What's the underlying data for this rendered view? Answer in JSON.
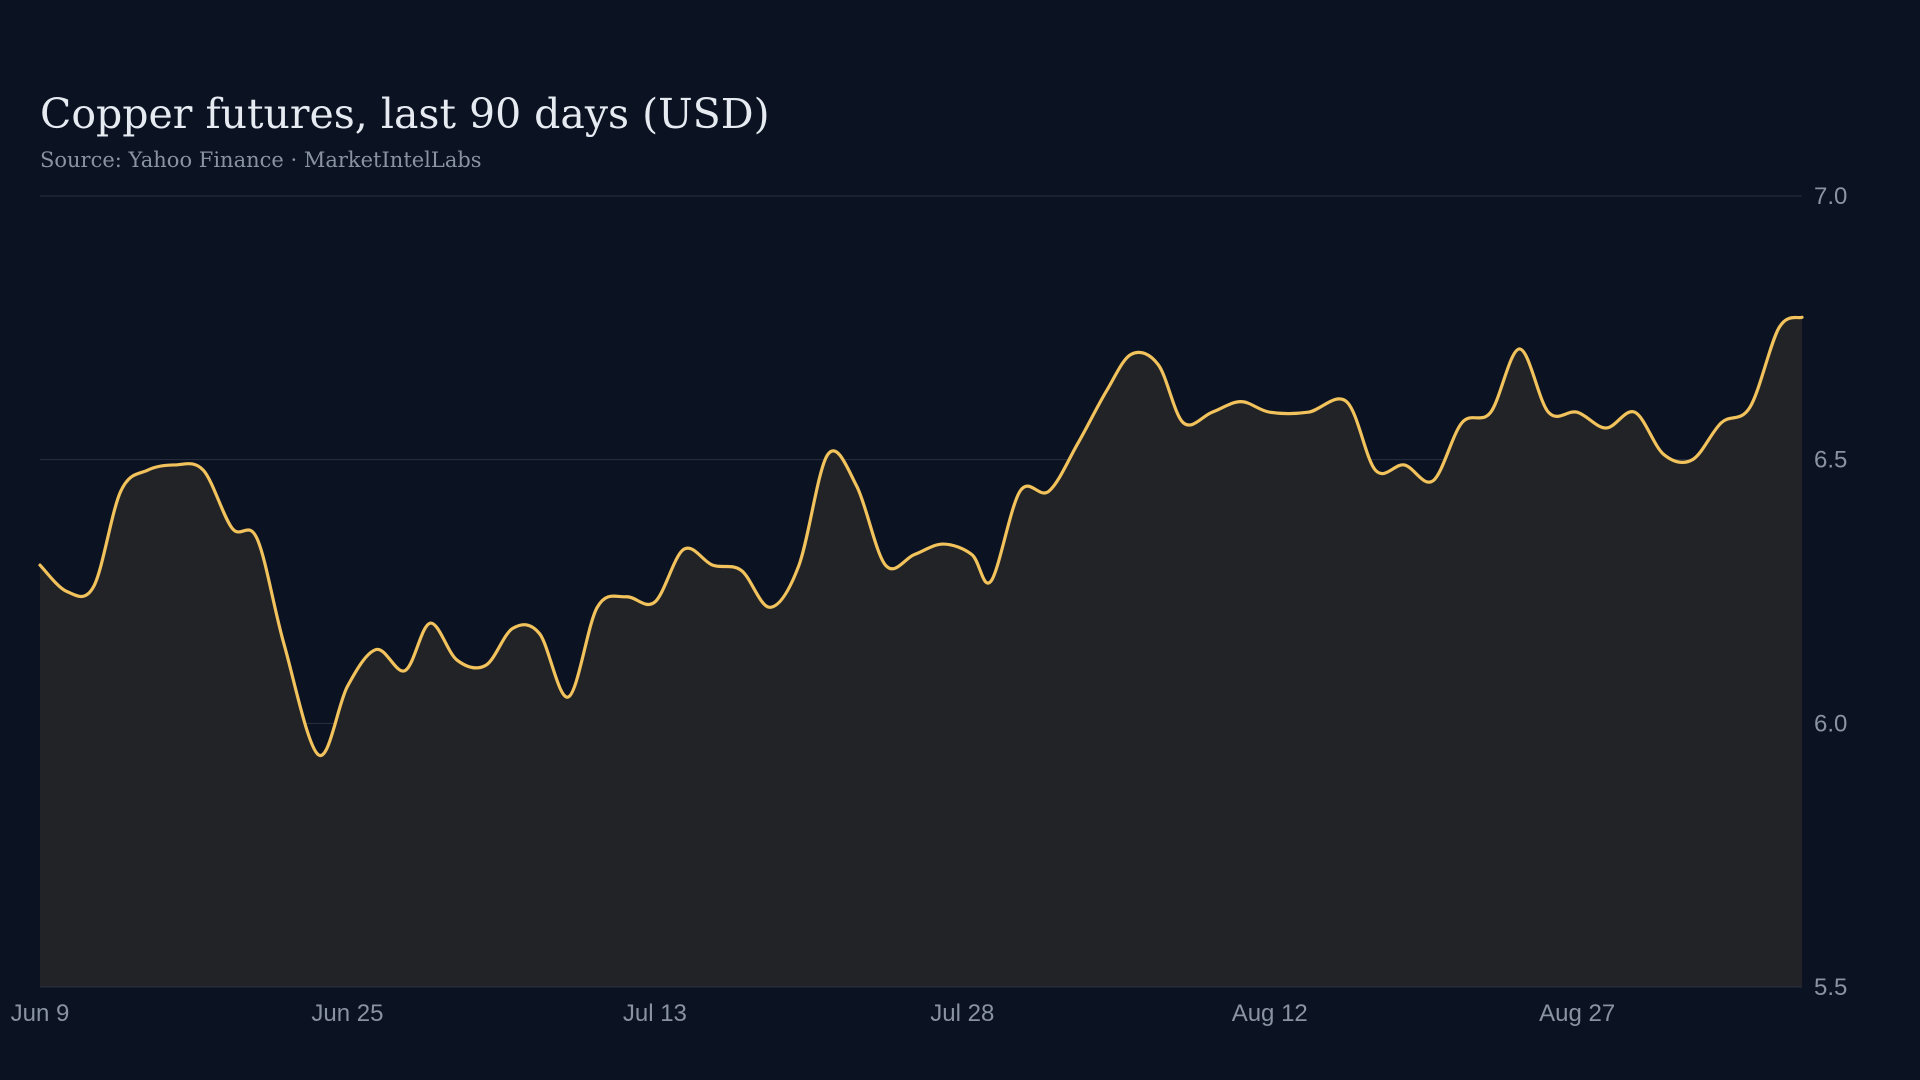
{
  "header": {
    "title": "Copper futures, last 90 days (USD)",
    "subtitle": "Source: Yahoo Finance · MarketIntelLabs"
  },
  "colors": {
    "background": "#0b1222",
    "line": "#f2c35c",
    "area_fill": "#212327",
    "grid": "#2a3140",
    "text_muted": "#8a93a3",
    "title": "#e6ebf2"
  },
  "chart_data": {
    "type": "area",
    "title": "Copper futures, last 90 days (USD)",
    "subtitle": "Source: Yahoo Finance · MarketIntelLabs",
    "xlabel": "",
    "ylabel": "",
    "ylim": [
      5.5,
      7.0
    ],
    "y_ticks": [
      "5.5",
      "6.0",
      "6.5",
      "7.0"
    ],
    "y_axis_side": "right",
    "grid": "horizontal",
    "x_tick_labels": [
      {
        "label": "Jun  9",
        "day": 0
      },
      {
        "label": "Jun 25",
        "day": 16
      },
      {
        "label": "Jul 13",
        "day": 32
      },
      {
        "label": "Jul 28",
        "day": 48
      },
      {
        "label": "Aug 12",
        "day": 64
      },
      {
        "label": "Aug 27",
        "day": 80
      }
    ],
    "series": [
      {
        "values": [
          [
            0,
            6.3
          ],
          [
            1.4,
            6.25
          ],
          [
            2.8,
            6.26
          ],
          [
            4.2,
            6.44
          ],
          [
            5.6,
            6.48
          ],
          [
            7.0,
            6.49
          ],
          [
            8.5,
            6.48
          ],
          [
            10.0,
            6.37
          ],
          [
            11.3,
            6.35
          ],
          [
            12.7,
            6.15
          ],
          [
            14.5,
            5.94
          ],
          [
            16.0,
            6.07
          ],
          [
            17.5,
            6.14
          ],
          [
            19.0,
            6.1
          ],
          [
            20.3,
            6.19
          ],
          [
            21.7,
            6.12
          ],
          [
            23.2,
            6.11
          ],
          [
            24.6,
            6.18
          ],
          [
            26.0,
            6.17
          ],
          [
            27.5,
            6.05
          ],
          [
            29.0,
            6.22
          ],
          [
            30.5,
            6.24
          ],
          [
            32.0,
            6.23
          ],
          [
            33.5,
            6.33
          ],
          [
            35.0,
            6.3
          ],
          [
            36.5,
            6.29
          ],
          [
            38.0,
            6.22
          ],
          [
            39.5,
            6.3
          ],
          [
            41.0,
            6.51
          ],
          [
            42.5,
            6.45
          ],
          [
            44.0,
            6.3
          ],
          [
            45.5,
            6.32
          ],
          [
            47.0,
            6.34
          ],
          [
            48.5,
            6.32
          ],
          [
            49.5,
            6.27
          ],
          [
            51.0,
            6.44
          ],
          [
            52.5,
            6.44
          ],
          [
            54.0,
            6.53
          ],
          [
            55.5,
            6.63
          ],
          [
            56.8,
            6.7
          ],
          [
            58.2,
            6.68
          ],
          [
            59.5,
            6.57
          ],
          [
            61.0,
            6.59
          ],
          [
            62.5,
            6.61
          ],
          [
            64.0,
            6.59
          ],
          [
            66.0,
            6.59
          ],
          [
            68.0,
            6.61
          ],
          [
            69.5,
            6.48
          ],
          [
            71.0,
            6.49
          ],
          [
            72.5,
            6.46
          ],
          [
            74.0,
            6.57
          ],
          [
            75.5,
            6.59
          ],
          [
            77.0,
            6.71
          ],
          [
            78.5,
            6.59
          ],
          [
            80.0,
            6.59
          ],
          [
            81.5,
            6.56
          ],
          [
            83.0,
            6.59
          ],
          [
            84.5,
            6.51
          ],
          [
            86.0,
            6.5
          ],
          [
            87.5,
            6.57
          ],
          [
            89.0,
            6.6
          ],
          [
            90.5,
            6.75
          ],
          [
            91.7,
            6.77
          ]
        ]
      }
    ]
  }
}
